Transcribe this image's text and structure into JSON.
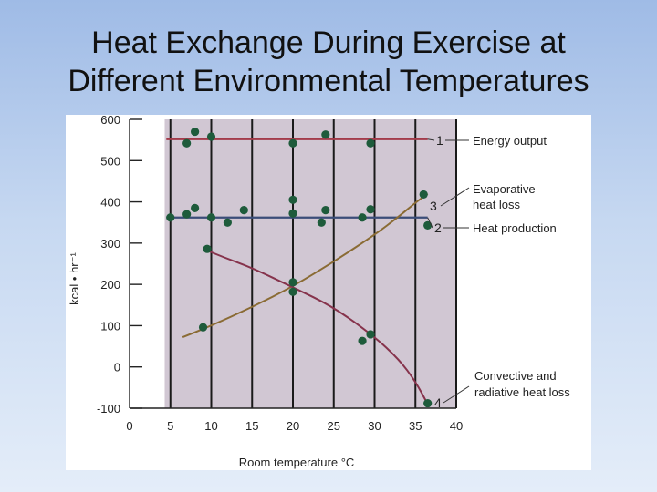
{
  "slide": {
    "title_line1": "Heat Exchange During Exercise at",
    "title_line2": "Different Environmental Temperatures"
  },
  "chart_data": {
    "type": "scatter",
    "title": "Heat Exchange During Exercise at Different Environmental Temperatures",
    "xlabel": "Room temperature °C",
    "ylabel": "kcal • hr⁻¹",
    "xlim": [
      0,
      40
    ],
    "ylim": [
      -100,
      600
    ],
    "x_ticks": [
      0,
      5,
      10,
      15,
      20,
      25,
      30,
      35,
      40
    ],
    "y_ticks": [
      -100,
      0,
      100,
      200,
      300,
      400,
      500,
      600
    ],
    "grid": "vertical",
    "colors": {
      "plot_bg": "#d1c7d3",
      "point": "#1e5b3b",
      "energy_output": "#a33b4a",
      "heat_production": "#3b4d79",
      "evaporative": "#8a6b34",
      "convective": "#86334c",
      "grid": "#1a1a1a"
    },
    "series": [
      {
        "name": "Energy output",
        "number": "1",
        "fit": {
          "kind": "flat",
          "x": [
            4.5,
            36.5
          ],
          "y": 552
        },
        "points": [
          [
            7,
            542
          ],
          [
            8,
            570
          ],
          [
            10,
            558
          ],
          [
            20,
            542
          ],
          [
            24,
            563
          ],
          [
            29.5,
            542
          ]
        ]
      },
      {
        "name": "Heat production",
        "number": "2",
        "fit": {
          "kind": "flat",
          "x": [
            4.5,
            36.5
          ],
          "y": 362
        },
        "points": [
          [
            5,
            362
          ],
          [
            7,
            370
          ],
          [
            8,
            385
          ],
          [
            10,
            362
          ],
          [
            12,
            350
          ],
          [
            14,
            380
          ],
          [
            20,
            372
          ],
          [
            20,
            405
          ],
          [
            23.5,
            350
          ],
          [
            24,
            380
          ],
          [
            28.5,
            362
          ],
          [
            29.5,
            382
          ],
          [
            36.5,
            343
          ]
        ]
      },
      {
        "name": "Evaporative heat loss",
        "number": "3",
        "fit": {
          "kind": "curve",
          "x": [
            6.5,
            10,
            15,
            20,
            25,
            30,
            33,
            35,
            36.5
          ],
          "y": [
            72,
            100,
            145,
            195,
            255,
            320,
            365,
            398,
            420
          ]
        },
        "points": [
          [
            9,
            96
          ],
          [
            20,
            182
          ],
          [
            36,
            418
          ]
        ]
      },
      {
        "name": "Convective and radiative heat loss",
        "number": "4",
        "fit": {
          "kind": "curve",
          "x": [
            9,
            12,
            15,
            20,
            25,
            30,
            33,
            35,
            36.5
          ],
          "y": [
            286,
            262,
            240,
            193,
            145,
            73,
            18,
            -35,
            -90
          ]
        },
        "points": [
          [
            9.5,
            286
          ],
          [
            20,
            205
          ],
          [
            28.5,
            63
          ],
          [
            29.5,
            79
          ],
          [
            36.5,
            -88
          ]
        ]
      }
    ],
    "labels": {
      "energy_output": "Energy output",
      "evaporative_line1": "Evaporative",
      "evaporative_line2": "heat loss",
      "heat_production": "Heat production",
      "convective_line1": "Convective and",
      "convective_line2": "radiative heat loss"
    }
  }
}
